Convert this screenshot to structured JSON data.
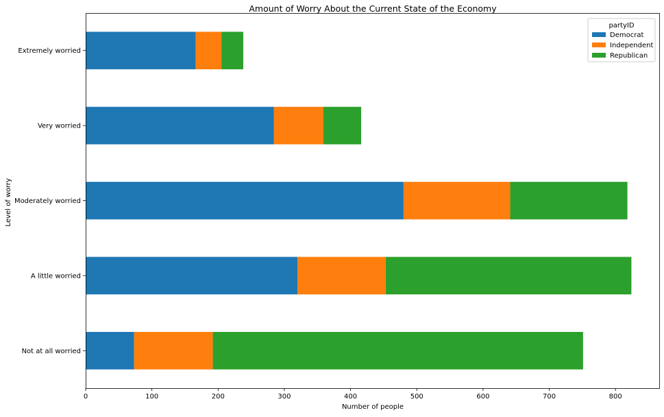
{
  "chart_data": {
    "type": "bar",
    "orientation": "horizontal",
    "stacked": true,
    "title": "Amount of Worry About the Current State of the Economy",
    "xlabel": "Number of people",
    "ylabel": "Level of worry",
    "xlim": [
      0,
      866
    ],
    "xticks": [
      0,
      100,
      200,
      300,
      400,
      500,
      600,
      700,
      800
    ],
    "grid": false,
    "legend": {
      "title": "partyID",
      "placement": "top-right"
    },
    "categories": [
      "Extremely worried",
      "Very worried",
      "Moderately worried",
      "A little worried",
      "Not at all worried"
    ],
    "series": [
      {
        "name": "Democrat",
        "color": "#1f77b4",
        "values": [
          166,
          284,
          480,
          320,
          73
        ]
      },
      {
        "name": "Independent",
        "color": "#ff7f0e",
        "values": [
          39,
          75,
          161,
          133,
          119
        ]
      },
      {
        "name": "Republican",
        "color": "#2ca02c",
        "values": [
          33,
          57,
          177,
          371,
          559
        ]
      }
    ]
  }
}
